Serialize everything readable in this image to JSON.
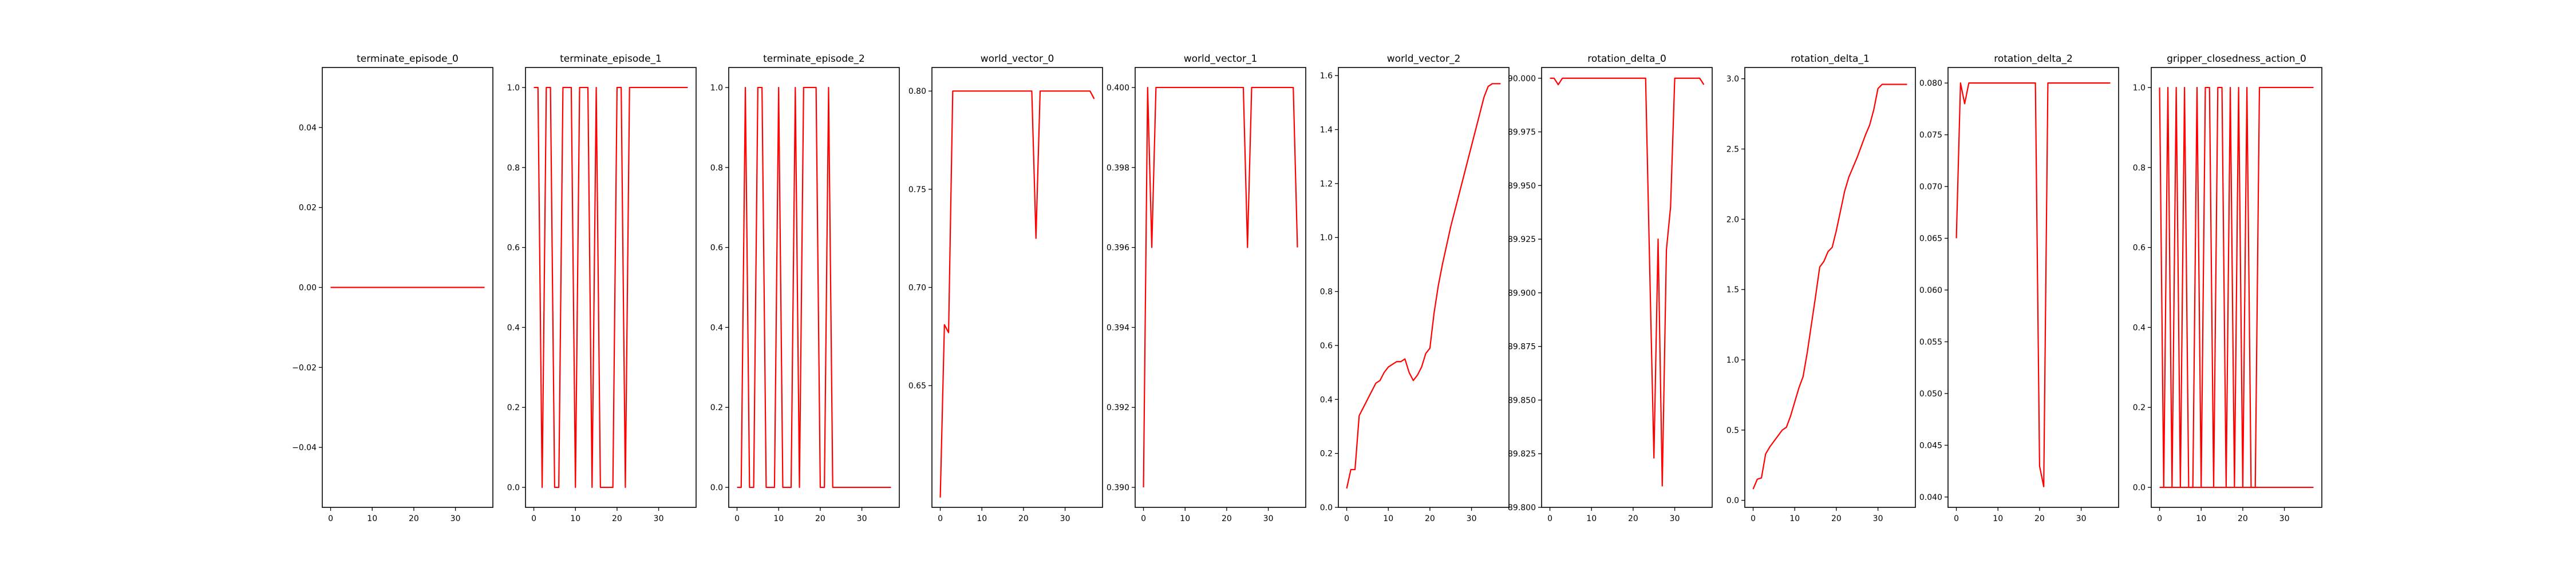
{
  "style": {
    "line_color": "#ff0000",
    "frame_color": "#000000",
    "background": "#ffffff"
  },
  "chart_data": [
    {
      "type": "line",
      "title": "terminate_episode_0",
      "xlabel": "",
      "ylabel": "",
      "xlim": [
        -2,
        39
      ],
      "ylim": [
        -0.055,
        0.055
      ],
      "grid": false,
      "xticks": [
        0,
        10,
        20,
        30
      ],
      "xtick_labels": [
        "0",
        "10",
        "20",
        "30"
      ],
      "yticks": [
        -0.04,
        -0.02,
        0.0,
        0.02,
        0.04
      ],
      "ytick_labels": [
        "−0.04",
        "−0.02",
        "0.00",
        "0.02",
        "0.04"
      ],
      "series": [
        {
          "x": [
            0,
            37
          ],
          "y": [
            0,
            0
          ]
        }
      ]
    },
    {
      "type": "line",
      "title": "terminate_episode_1",
      "xlabel": "",
      "ylabel": "",
      "xlim": [
        -2,
        39
      ],
      "ylim": [
        -0.05,
        1.05
      ],
      "grid": false,
      "xticks": [
        0,
        10,
        20,
        30
      ],
      "xtick_labels": [
        "0",
        "10",
        "20",
        "30"
      ],
      "yticks": [
        0,
        0.2,
        0.4,
        0.6,
        0.8,
        1.0
      ],
      "ytick_labels": [
        "0.0",
        "0.2",
        "0.4",
        "0.6",
        "0.8",
        "1.0"
      ],
      "series": [
        {
          "x": [
            0,
            1,
            2,
            3,
            4,
            5,
            6,
            7,
            8,
            9,
            10,
            11,
            12,
            13,
            14,
            15,
            16,
            17,
            18,
            19,
            20,
            21,
            22,
            23,
            24,
            25,
            26,
            27,
            28,
            29,
            30,
            31,
            32,
            33,
            34,
            35,
            36,
            37
          ],
          "y": [
            1,
            1,
            0,
            1,
            1,
            0,
            0,
            1,
            1,
            1,
            0,
            1,
            1,
            1,
            0,
            1,
            0,
            0,
            0,
            0,
            1,
            1,
            0,
            1,
            1,
            1,
            1,
            1,
            1,
            1,
            1,
            1,
            1,
            1,
            1,
            1,
            1,
            1
          ]
        }
      ]
    },
    {
      "type": "line",
      "title": "terminate_episode_2",
      "xlabel": "",
      "ylabel": "",
      "xlim": [
        -2,
        39
      ],
      "ylim": [
        -0.05,
        1.05
      ],
      "grid": false,
      "xticks": [
        0,
        10,
        20,
        30
      ],
      "xtick_labels": [
        "0",
        "10",
        "20",
        "30"
      ],
      "yticks": [
        0,
        0.2,
        0.4,
        0.6,
        0.8,
        1.0
      ],
      "ytick_labels": [
        "0.0",
        "0.2",
        "0.4",
        "0.6",
        "0.8",
        "1.0"
      ],
      "series": [
        {
          "x": [
            0,
            1,
            2,
            3,
            4,
            5,
            6,
            7,
            8,
            9,
            10,
            11,
            12,
            13,
            14,
            15,
            16,
            17,
            18,
            19,
            20,
            21,
            22,
            23,
            24,
            25,
            26,
            27,
            28,
            29,
            30,
            31,
            32,
            33,
            34,
            35,
            36,
            37
          ],
          "y": [
            0,
            0,
            1,
            0,
            0,
            1,
            1,
            0,
            0,
            0,
            1,
            0,
            0,
            0,
            1,
            0,
            1,
            1,
            1,
            1,
            0,
            0,
            1,
            0,
            0,
            0,
            0,
            0,
            0,
            0,
            0,
            0,
            0,
            0,
            0,
            0,
            0,
            0
          ]
        }
      ]
    },
    {
      "type": "line",
      "title": "world_vector_0",
      "xlabel": "",
      "ylabel": "",
      "xlim": [
        -2,
        39
      ],
      "ylim": [
        0.588,
        0.812
      ],
      "grid": false,
      "xticks": [
        0,
        10,
        20,
        30
      ],
      "xtick_labels": [
        "0",
        "10",
        "20",
        "30"
      ],
      "yticks": [
        0.65,
        0.7,
        0.75,
        0.8
      ],
      "ytick_labels": [
        "0.65",
        "0.70",
        "0.75",
        "0.80"
      ],
      "series": [
        {
          "x": [
            0,
            1,
            2,
            3,
            4,
            5,
            6,
            7,
            8,
            9,
            10,
            11,
            12,
            13,
            14,
            15,
            16,
            17,
            18,
            19,
            20,
            21,
            22,
            23,
            24,
            25,
            26,
            27,
            28,
            29,
            30,
            31,
            32,
            33,
            34,
            35,
            36,
            37
          ],
          "y": [
            0.593,
            0.681,
            0.677,
            0.8,
            0.8,
            0.8,
            0.8,
            0.8,
            0.8,
            0.8,
            0.8,
            0.8,
            0.8,
            0.8,
            0.8,
            0.8,
            0.8,
            0.8,
            0.8,
            0.8,
            0.8,
            0.8,
            0.8,
            0.725,
            0.8,
            0.8,
            0.8,
            0.8,
            0.8,
            0.8,
            0.8,
            0.8,
            0.8,
            0.8,
            0.8,
            0.8,
            0.8,
            0.796
          ]
        }
      ]
    },
    {
      "type": "line",
      "title": "world_vector_1",
      "xlabel": "",
      "ylabel": "",
      "xlim": [
        -2,
        39
      ],
      "ylim": [
        0.3895,
        0.4005
      ],
      "grid": false,
      "xticks": [
        0,
        10,
        20,
        30
      ],
      "xtick_labels": [
        "0",
        "10",
        "20",
        "30"
      ],
      "yticks": [
        0.39,
        0.392,
        0.394,
        0.396,
        0.398,
        0.4
      ],
      "ytick_labels": [
        "0.390",
        "0.392",
        "0.394",
        "0.396",
        "0.398",
        "0.400"
      ],
      "series": [
        {
          "x": [
            0,
            1,
            2,
            3,
            4,
            5,
            6,
            7,
            8,
            9,
            10,
            11,
            12,
            13,
            14,
            15,
            16,
            17,
            18,
            19,
            20,
            21,
            22,
            23,
            24,
            25,
            26,
            27,
            28,
            29,
            30,
            31,
            32,
            33,
            34,
            35,
            36,
            37
          ],
          "y": [
            0.39,
            0.4,
            0.396,
            0.4,
            0.4,
            0.4,
            0.4,
            0.4,
            0.4,
            0.4,
            0.4,
            0.4,
            0.4,
            0.4,
            0.4,
            0.4,
            0.4,
            0.4,
            0.4,
            0.4,
            0.4,
            0.4,
            0.4,
            0.4,
            0.4,
            0.396,
            0.4,
            0.4,
            0.4,
            0.4,
            0.4,
            0.4,
            0.4,
            0.4,
            0.4,
            0.4,
            0.4,
            0.396
          ]
        }
      ]
    },
    {
      "type": "line",
      "title": "world_vector_2",
      "xlabel": "",
      "ylabel": "",
      "xlim": [
        -2,
        39
      ],
      "ylim": [
        0.0,
        1.63
      ],
      "grid": false,
      "xticks": [
        0,
        10,
        20,
        30
      ],
      "xtick_labels": [
        "0",
        "10",
        "20",
        "30"
      ],
      "yticks": [
        0.0,
        0.2,
        0.4,
        0.6,
        0.8,
        1.0,
        1.2,
        1.4,
        1.6
      ],
      "ytick_labels": [
        "0.0",
        "0.2",
        "0.4",
        "0.6",
        "0.8",
        "1.0",
        "1.2",
        "1.4",
        "1.6"
      ],
      "series": [
        {
          "x": [
            0,
            1,
            2,
            3,
            4,
            5,
            6,
            7,
            8,
            9,
            10,
            11,
            12,
            13,
            14,
            15,
            16,
            17,
            18,
            19,
            20,
            21,
            22,
            23,
            24,
            25,
            26,
            27,
            28,
            29,
            30,
            31,
            32,
            33,
            34,
            35,
            36,
            37
          ],
          "y": [
            0.07,
            0.14,
            0.14,
            0.34,
            0.37,
            0.4,
            0.43,
            0.46,
            0.47,
            0.5,
            0.52,
            0.53,
            0.54,
            0.54,
            0.55,
            0.5,
            0.47,
            0.49,
            0.52,
            0.57,
            0.59,
            0.72,
            0.82,
            0.9,
            0.97,
            1.04,
            1.1,
            1.16,
            1.22,
            1.28,
            1.34,
            1.4,
            1.46,
            1.52,
            1.56,
            1.57,
            1.57,
            1.57
          ]
        }
      ]
    },
    {
      "type": "line",
      "title": "rotation_delta_0",
      "xlabel": "",
      "ylabel": "",
      "xlim": [
        -2,
        39
      ],
      "ylim": [
        89.8,
        90.005
      ],
      "grid": false,
      "xticks": [
        0,
        10,
        20,
        30
      ],
      "xtick_labels": [
        "0",
        "10",
        "20",
        "30"
      ],
      "yticks": [
        89.8,
        89.825,
        89.85,
        89.875,
        89.9,
        89.925,
        89.95,
        89.975,
        90.0
      ],
      "ytick_labels": [
        "89.800",
        "89.825",
        "89.850",
        "89.875",
        "89.900",
        "89.925",
        "89.950",
        "89.975",
        "90.000"
      ],
      "series": [
        {
          "x": [
            0,
            1,
            2,
            3,
            4,
            5,
            6,
            7,
            8,
            9,
            10,
            11,
            12,
            13,
            14,
            15,
            16,
            17,
            18,
            19,
            20,
            21,
            22,
            23,
            24,
            25,
            26,
            27,
            28,
            29,
            30,
            31,
            32,
            33,
            34,
            35,
            36,
            37
          ],
          "y": [
            90.0,
            90.0,
            89.997,
            90.0,
            90.0,
            90.0,
            90.0,
            90.0,
            90.0,
            90.0,
            90.0,
            90.0,
            90.0,
            90.0,
            90.0,
            90.0,
            90.0,
            90.0,
            90.0,
            90.0,
            90.0,
            90.0,
            90.0,
            90.0,
            89.91,
            89.823,
            89.925,
            89.81,
            89.92,
            89.94,
            90.0,
            90.0,
            90.0,
            90.0,
            90.0,
            90.0,
            90.0,
            89.997
          ]
        }
      ]
    },
    {
      "type": "line",
      "title": "rotation_delta_1",
      "xlabel": "",
      "ylabel": "",
      "xlim": [
        -2,
        39
      ],
      "ylim": [
        -0.05,
        3.08
      ],
      "grid": false,
      "xticks": [
        0,
        10,
        20,
        30
      ],
      "xtick_labels": [
        "0",
        "10",
        "20",
        "30"
      ],
      "yticks": [
        0.0,
        0.5,
        1.0,
        1.5,
        2.0,
        2.5,
        3.0
      ],
      "ytick_labels": [
        "0.0",
        "0.5",
        "1.0",
        "1.5",
        "2.0",
        "2.5",
        "3.0"
      ],
      "series": [
        {
          "x": [
            0,
            1,
            2,
            3,
            4,
            5,
            6,
            7,
            8,
            9,
            10,
            11,
            12,
            13,
            14,
            15,
            16,
            17,
            18,
            19,
            20,
            21,
            22,
            23,
            24,
            25,
            26,
            27,
            28,
            29,
            30,
            31,
            32,
            33,
            34,
            35,
            36,
            37
          ],
          "y": [
            0.08,
            0.15,
            0.16,
            0.33,
            0.38,
            0.42,
            0.46,
            0.5,
            0.52,
            0.6,
            0.7,
            0.8,
            0.88,
            1.05,
            1.25,
            1.45,
            1.66,
            1.7,
            1.77,
            1.8,
            1.92,
            2.06,
            2.2,
            2.3,
            2.37,
            2.44,
            2.52,
            2.6,
            2.67,
            2.78,
            2.93,
            2.96,
            2.96,
            2.96,
            2.96,
            2.96,
            2.96,
            2.96
          ]
        }
      ]
    },
    {
      "type": "line",
      "title": "rotation_delta_2",
      "xlabel": "",
      "ylabel": "",
      "xlim": [
        -2,
        39
      ],
      "ylim": [
        0.039,
        0.0815
      ],
      "grid": false,
      "xticks": [
        0,
        10,
        20,
        30
      ],
      "xtick_labels": [
        "0",
        "10",
        "20",
        "30"
      ],
      "yticks": [
        0.04,
        0.045,
        0.05,
        0.055,
        0.06,
        0.065,
        0.07,
        0.075,
        0.08
      ],
      "ytick_labels": [
        "0.040",
        "0.045",
        "0.050",
        "0.055",
        "0.060",
        "0.065",
        "0.070",
        "0.075",
        "0.080"
      ],
      "series": [
        {
          "x": [
            0,
            1,
            2,
            3,
            4,
            5,
            6,
            7,
            8,
            9,
            10,
            11,
            12,
            13,
            14,
            15,
            16,
            17,
            18,
            19,
            20,
            21,
            22,
            23,
            24,
            25,
            26,
            27,
            28,
            29,
            30,
            31,
            32,
            33,
            34,
            35,
            36,
            37
          ],
          "y": [
            0.065,
            0.08,
            0.078,
            0.08,
            0.08,
            0.08,
            0.08,
            0.08,
            0.08,
            0.08,
            0.08,
            0.08,
            0.08,
            0.08,
            0.08,
            0.08,
            0.08,
            0.08,
            0.08,
            0.08,
            0.043,
            0.041,
            0.08,
            0.08,
            0.08,
            0.08,
            0.08,
            0.08,
            0.08,
            0.08,
            0.08,
            0.08,
            0.08,
            0.08,
            0.08,
            0.08,
            0.08,
            0.08
          ]
        }
      ]
    },
    {
      "type": "line",
      "title": "gripper_closedness_action_0",
      "xlabel": "",
      "ylabel": "",
      "xlim": [
        -2,
        39
      ],
      "ylim": [
        -0.05,
        1.05
      ],
      "grid": false,
      "xticks": [
        0,
        10,
        20,
        30
      ],
      "xtick_labels": [
        "0",
        "10",
        "20",
        "30"
      ],
      "yticks": [
        0,
        0.2,
        0.4,
        0.6,
        0.8,
        1.0
      ],
      "ytick_labels": [
        "0.0",
        "0.2",
        "0.4",
        "0.6",
        "0.8",
        "1.0"
      ],
      "series": [
        {
          "x": [
            0,
            1,
            2,
            3,
            4,
            5,
            6,
            7,
            8,
            9,
            10,
            11,
            12,
            13,
            14,
            15,
            16,
            17,
            18,
            19,
            20,
            21,
            22,
            23,
            24,
            25,
            26,
            27,
            28,
            29,
            30,
            31,
            32,
            33,
            34,
            35,
            36,
            37
          ],
          "y": [
            1,
            0,
            1,
            0,
            1,
            0,
            1,
            0,
            0,
            1,
            0,
            1,
            1,
            0,
            1,
            1,
            0,
            1,
            0,
            1,
            0,
            1,
            0,
            0,
            1,
            1,
            1,
            1,
            1,
            1,
            1,
            1,
            1,
            1,
            1,
            1,
            1,
            1
          ]
        },
        {
          "x": [
            0,
            37
          ],
          "y": [
            0,
            0
          ]
        }
      ]
    }
  ]
}
